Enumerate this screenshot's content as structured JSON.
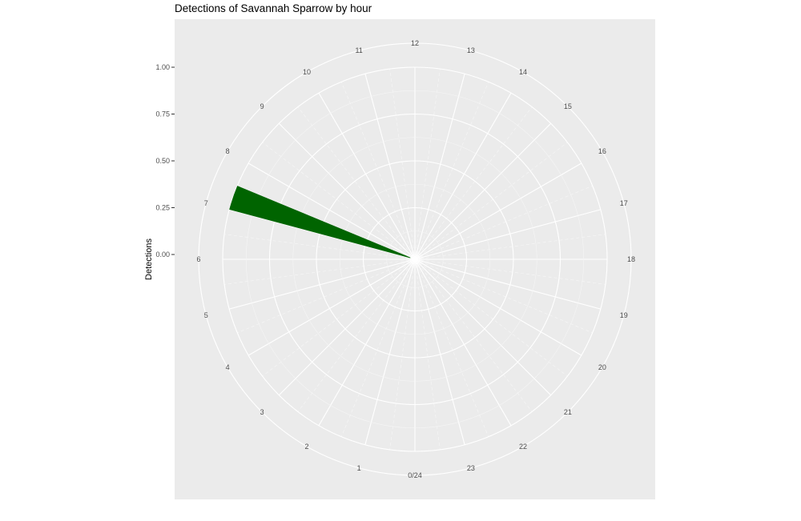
{
  "chart_data": {
    "type": "bar",
    "coord": "polar",
    "title": "Detections of Savannah Sparrow by hour",
    "xlabel": "",
    "ylabel": "Detections",
    "categories": [
      "0/24",
      "1",
      "2",
      "3",
      "4",
      "5",
      "6",
      "7",
      "8",
      "9",
      "10",
      "11",
      "12",
      "13",
      "14",
      "15",
      "16",
      "17",
      "18",
      "19",
      "20",
      "21",
      "22",
      "23"
    ],
    "values": [
      0,
      0,
      0,
      0,
      0,
      0,
      0,
      1,
      0,
      0,
      0,
      0,
      0,
      0,
      0,
      0,
      0,
      0,
      0,
      0,
      0,
      0,
      0,
      0
    ],
    "bar_hours": [
      {
        "start": 7.0,
        "end": 7.5,
        "value": 1
      }
    ],
    "ylim": [
      0,
      1
    ],
    "y_ticks": [
      "0.00",
      "0.25",
      "0.50",
      "0.75",
      "1.00"
    ],
    "grid": true,
    "bar_color": "#006400",
    "panel_background": "#ebebeb"
  }
}
